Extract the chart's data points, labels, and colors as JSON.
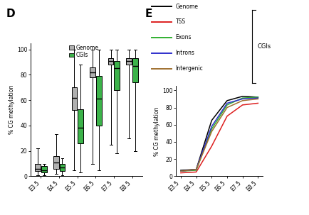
{
  "panel_D": {
    "ylabel": "% CG methylation",
    "categories": [
      "E3.5",
      "E4.5",
      "E5.5",
      "E6.5",
      "E7.5",
      "E8.5"
    ],
    "genome_boxes": [
      {
        "whislo": 1,
        "q1": 4,
        "med": 6,
        "q3": 10,
        "whishi": 22
      },
      {
        "whislo": 2,
        "q1": 6,
        "med": 11,
        "q3": 16,
        "whishi": 33
      },
      {
        "whislo": 5,
        "q1": 52,
        "med": 62,
        "q3": 70,
        "whishi": 100
      },
      {
        "whislo": 10,
        "q1": 78,
        "med": 82,
        "q3": 86,
        "whishi": 100
      },
      {
        "whislo": 25,
        "q1": 88,
        "med": 91,
        "q3": 93,
        "whishi": 100
      },
      {
        "whislo": 30,
        "q1": 88,
        "med": 91,
        "q3": 93,
        "whishi": 100
      }
    ],
    "cgis_boxes": [
      {
        "whislo": 1,
        "q1": 3,
        "med": 5,
        "q3": 8,
        "whishi": 10
      },
      {
        "whislo": 1,
        "q1": 4,
        "med": 7,
        "q3": 10,
        "whishi": 14
      },
      {
        "whislo": 3,
        "q1": 26,
        "med": 38,
        "q3": 53,
        "whishi": 88
      },
      {
        "whislo": 5,
        "q1": 40,
        "med": 61,
        "q3": 79,
        "whishi": 100
      },
      {
        "whislo": 18,
        "q1": 68,
        "med": 85,
        "q3": 91,
        "whishi": 100
      },
      {
        "whislo": 20,
        "q1": 74,
        "med": 87,
        "q3": 93,
        "whishi": 100
      }
    ],
    "genome_color": "#b0b0b0",
    "cgis_color": "#3cb34a",
    "legend_genome": "Genome",
    "legend_cgis": "CGIs"
  },
  "panel_E": {
    "ylabel": "% CG methylation",
    "categories": [
      "E3.5",
      "E4.5",
      "E5.5",
      "E6.5",
      "E7.5",
      "E8.5"
    ],
    "x_vals": [
      0,
      1,
      2,
      3,
      4,
      5
    ],
    "genome": [
      7,
      8,
      65,
      88,
      93,
      92
    ],
    "tss": [
      4,
      5,
      35,
      70,
      83,
      85
    ],
    "exons": [
      6,
      7,
      55,
      83,
      91,
      92
    ],
    "introns": [
      6,
      8,
      58,
      85,
      90,
      91
    ],
    "intergenic": [
      6,
      8,
      52,
      80,
      88,
      90
    ],
    "colors": {
      "Genome": "#000000",
      "TSS": "#dd2020",
      "Exons": "#30b030",
      "Introns": "#3030cc",
      "Intergenic": "#a07030"
    },
    "line_order": [
      "Genome",
      "TSS",
      "Exons",
      "Introns",
      "Intergenic"
    ],
    "cgis_label": "CGIs"
  }
}
